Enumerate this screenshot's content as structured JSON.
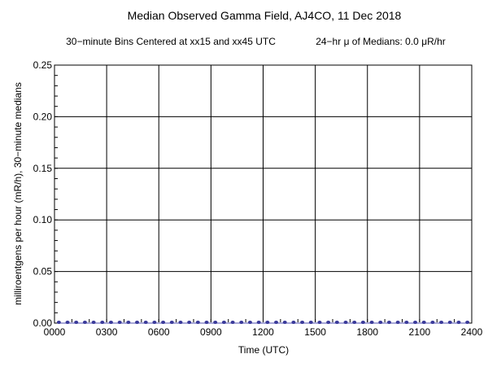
{
  "chart_data": {
    "type": "scatter",
    "title": "Median Observed Gamma Field, AJ4CO, 11 Dec 2018",
    "subtitle_left": "30−minute Bins Centered at xx15 and xx45 UTC",
    "subtitle_right": "24−hr μ of Medians: 0.0 μR/hr",
    "xlabel": "Time (UTC)",
    "ylabel": "milliroentgens per hour (mR/h), 30−minute medians",
    "xlim": [
      0,
      24
    ],
    "ylim": [
      0,
      0.25
    ],
    "grid": true,
    "x_tick_values": [
      0,
      3,
      6,
      9,
      12,
      15,
      18,
      21,
      24
    ],
    "x_tick_labels": [
      "0000",
      "0300",
      "0600",
      "0900",
      "1200",
      "1500",
      "1800",
      "2100",
      "2400"
    ],
    "y_tick_values": [
      0,
      0.05,
      0.1,
      0.15,
      0.2,
      0.25
    ],
    "y_tick_labels": [
      "0.00",
      "0.05",
      "0.10",
      "0.15",
      "0.20",
      "0.25"
    ],
    "x": [
      0.25,
      0.75,
      1.25,
      1.75,
      2.25,
      2.75,
      3.25,
      3.75,
      4.25,
      4.75,
      5.25,
      5.75,
      6.25,
      6.75,
      7.25,
      7.75,
      8.25,
      8.75,
      9.25,
      9.75,
      10.25,
      10.75,
      11.25,
      11.75,
      12.25,
      12.75,
      13.25,
      13.75,
      14.25,
      14.75,
      15.25,
      15.75,
      16.25,
      16.75,
      17.25,
      17.75,
      18.25,
      18.75,
      19.25,
      19.75,
      20.25,
      20.75,
      21.25,
      21.75,
      22.25,
      22.75,
      23.25,
      23.75
    ],
    "y": [
      0,
      0,
      0,
      0,
      0,
      0,
      0,
      0,
      0,
      0,
      0,
      0,
      0,
      0,
      0,
      0,
      0,
      0,
      0,
      0,
      0,
      0,
      0,
      0,
      0,
      0,
      0,
      0,
      0,
      0,
      0,
      0,
      0,
      0,
      0,
      0,
      0,
      0,
      0,
      0,
      0,
      0,
      0,
      0,
      0,
      0,
      0,
      0
    ],
    "point_color": "#3a3a9a",
    "line_color": "#a8a8d8"
  }
}
